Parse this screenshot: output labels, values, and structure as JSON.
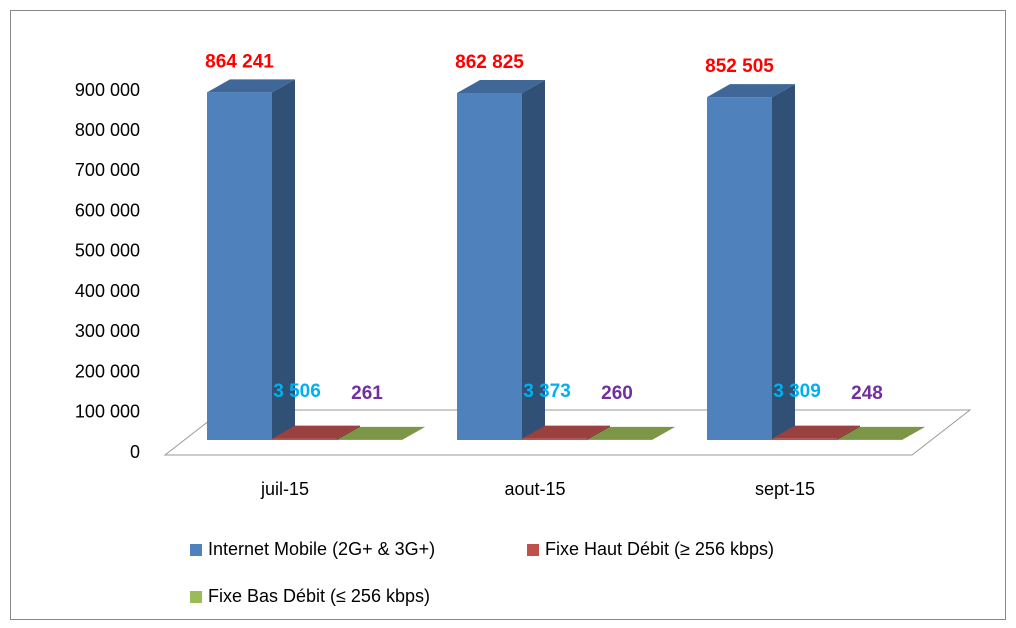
{
  "chart_data": {
    "type": "bar3d",
    "categories": [
      "juil-15",
      "aout-15",
      "sept-15"
    ],
    "series": [
      {
        "name": "Internet Mobile (2G+ & 3G+)",
        "color": "#4f81bd",
        "label_color": "#ff0000",
        "values": [
          864241,
          862825,
          852505
        ],
        "value_labels": [
          "864 241",
          "862 825",
          "852 505"
        ]
      },
      {
        "name": "Fixe Haut Débit (≥ 256 kbps)",
        "color": "#c0504d",
        "label_color": "#00b0f0",
        "values": [
          3506,
          3373,
          3309
        ],
        "value_labels": [
          "3 506",
          "3 373",
          "3 309"
        ]
      },
      {
        "name": "Fixe Bas Débit (≤ 256 kbps)",
        "color": "#9bbb59",
        "label_color": "#7030a0",
        "values": [
          261,
          260,
          248
        ],
        "value_labels": [
          "261",
          "260",
          "248"
        ]
      }
    ],
    "ylim": [
      0,
      900000
    ],
    "yticks": [
      0,
      {
        "value": 100000,
        "label": "100 000"
      },
      {
        "value": 200000,
        "label": "200 000"
      },
      {
        "value": 300000,
        "label": "300 000"
      },
      {
        "value": 400000,
        "label": "400 000"
      },
      {
        "value": 500000,
        "label": "500 000"
      },
      {
        "value": 600000,
        "label": "600 000"
      },
      {
        "value": 700000,
        "label": "700 000"
      },
      {
        "value": 800000,
        "label": "800 000"
      },
      {
        "value": 900000,
        "label": "900 000"
      }
    ],
    "legend": "bottom"
  }
}
